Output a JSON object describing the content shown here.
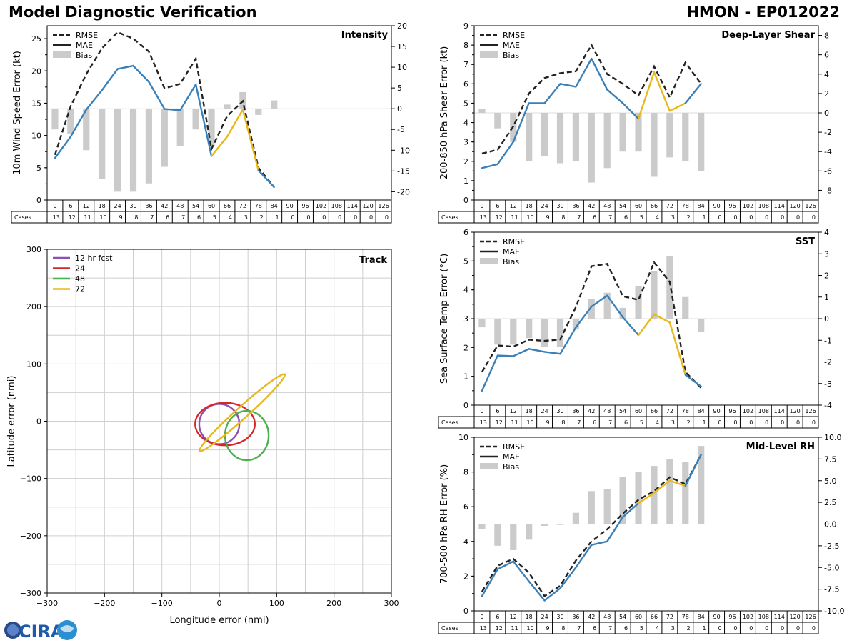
{
  "header": {
    "title": "Model Diagnostic Verification",
    "storm": "HMON - EP012022"
  },
  "logo": {
    "text": "CIRA"
  },
  "common": {
    "hours": [
      0,
      6,
      12,
      18,
      24,
      30,
      36,
      42,
      48,
      54,
      60,
      66,
      72,
      78,
      84,
      90,
      96,
      102,
      108,
      114,
      120,
      126
    ],
    "cases": [
      13,
      12,
      11,
      10,
      9,
      8,
      7,
      6,
      7,
      6,
      5,
      4,
      3,
      2,
      1,
      0,
      0,
      0,
      0,
      0,
      0,
      0
    ],
    "cases_label": "Cases",
    "legend": [
      "RMSE",
      "MAE",
      "Bias"
    ],
    "colors": {
      "rmse": "#222222",
      "mae": "#3a80b8",
      "mae_low_n": "#e8b81a",
      "bias": "#cbcbcb",
      "track_grid": "#cfcfcf"
    }
  },
  "chart_data": [
    {
      "id": "intensity",
      "type": "line",
      "title": "Intensity",
      "ylabel": "10m Wind Speed Error (kt)",
      "ylim": [
        0,
        27
      ],
      "yticks": [
        0,
        5,
        10,
        15,
        20,
        25
      ],
      "y2lim": [
        -22,
        20
      ],
      "y2ticks": [
        -20,
        -15,
        -10,
        -5,
        0,
        5,
        10,
        15,
        20
      ],
      "rmse": [
        7.0,
        14.5,
        19.5,
        23.5,
        26.0,
        25.0,
        23.0,
        17.3,
        18.0,
        21.9,
        7.9,
        13.0,
        15.3,
        5.0,
        2.0
      ],
      "mae": [
        6.5,
        9.8,
        14.0,
        17.0,
        20.3,
        20.8,
        18.3,
        14.1,
        13.9,
        17.9,
        6.8,
        9.8,
        14.0,
        4.6,
        2.0
      ],
      "bias": [
        -5.0,
        -6.0,
        -10.0,
        -17.0,
        -20.0,
        -20.0,
        -18.0,
        -14.0,
        -9.0,
        -5.0,
        -9.0,
        1.0,
        4.0,
        -1.5,
        2.0
      ]
    },
    {
      "id": "shear",
      "type": "line",
      "title": "Deep-Layer Shear",
      "ylabel": "200-850 hPa Shear Error (kt)",
      "ylim": [
        0,
        9
      ],
      "yticks": [
        0,
        1,
        2,
        3,
        4,
        5,
        6,
        7,
        8,
        9
      ],
      "y2lim": [
        -9,
        9
      ],
      "y2ticks": [
        -8,
        -6,
        -4,
        -2,
        0,
        2,
        4,
        6,
        8
      ],
      "rmse": [
        2.4,
        2.6,
        3.8,
        5.5,
        6.3,
        6.55,
        6.65,
        8.0,
        6.5,
        6.0,
        5.4,
        6.9,
        5.3,
        7.1,
        6.0
      ],
      "mae": [
        1.65,
        1.85,
        3.0,
        5.0,
        5.0,
        6.0,
        5.85,
        7.3,
        5.7,
        5.0,
        4.2,
        6.6,
        4.6,
        5.0,
        6.0
      ],
      "bias": [
        0.4,
        -1.6,
        -3.0,
        -5.0,
        -4.5,
        -5.2,
        -5.0,
        -7.2,
        -5.7,
        -4.0,
        -4.0,
        -6.6,
        -4.6,
        -5.0,
        -6.0
      ]
    },
    {
      "id": "sst",
      "type": "line",
      "title": "SST",
      "ylabel": "Sea Surface Temp Error (°C)",
      "ylim": [
        0,
        6
      ],
      "yticks": [
        0,
        1,
        2,
        3,
        4,
        5,
        6
      ],
      "y2lim": [
        -4,
        4
      ],
      "y2ticks": [
        -4,
        -3,
        -2,
        -1,
        0,
        1,
        2,
        3,
        4
      ],
      "rmse": [
        1.15,
        2.07,
        2.03,
        2.27,
        2.23,
        2.28,
        3.4,
        4.82,
        4.9,
        3.78,
        3.65,
        4.95,
        4.27,
        1.15,
        0.6
      ],
      "mae": [
        0.5,
        1.72,
        1.7,
        1.95,
        1.85,
        1.78,
        2.7,
        3.42,
        3.8,
        3.05,
        2.43,
        3.15,
        2.87,
        1.05,
        0.65
      ],
      "bias": [
        -0.4,
        -1.2,
        -1.2,
        -0.9,
        -1.3,
        -1.3,
        -0.5,
        0.9,
        1.2,
        0.5,
        1.5,
        2.2,
        2.9,
        1.0,
        -0.6
      ]
    },
    {
      "id": "rh",
      "type": "line",
      "title": "Mid-Level RH",
      "ylabel": "700-500 hPa RH Error (%)",
      "ylim": [
        0,
        10
      ],
      "yticks": [
        0,
        2,
        4,
        6,
        8,
        10
      ],
      "y2lim": [
        -10,
        10
      ],
      "y2ticks": [
        "-10.0",
        "-7.5",
        "-5.0",
        "-2.5",
        "0.0",
        "2.5",
        "5.0",
        "7.5",
        "10.0"
      ],
      "rmse": [
        1.1,
        2.6,
        3.0,
        2.2,
        0.85,
        1.45,
        2.9,
        4.0,
        4.7,
        5.6,
        6.4,
        6.9,
        7.7,
        7.3,
        9.0
      ],
      "mae": [
        0.85,
        2.4,
        2.85,
        1.7,
        0.6,
        1.3,
        2.5,
        3.8,
        4.0,
        5.4,
        6.2,
        6.8,
        7.5,
        7.2,
        9.0
      ],
      "bias": [
        -0.6,
        -2.5,
        -3.0,
        -1.8,
        -0.2,
        -0.1,
        1.3,
        3.8,
        4.0,
        5.4,
        6.0,
        6.7,
        7.5,
        7.2,
        9.0
      ]
    },
    {
      "id": "track",
      "type": "ellipse",
      "title": "Track",
      "xlabel": "Longitude error (nmi)",
      "ylabel": "Latitude error (nmi)",
      "xlim": [
        -300,
        300
      ],
      "ylim": [
        -300,
        300
      ],
      "ticks": [
        -300,
        -200,
        -100,
        0,
        100,
        200,
        300
      ],
      "grid_step": 50,
      "legend": [
        "12 hr fcst",
        "24",
        "48",
        "72"
      ],
      "ellipses": [
        {
          "label": "12 hr fcst",
          "color": "#8e4fb0",
          "cx": 0,
          "cy": -5,
          "rx": 35,
          "ry": 35,
          "angle": 90
        },
        {
          "label": "24",
          "color": "#d62728",
          "cx": 10,
          "cy": -5,
          "rx": 52,
          "ry": 37,
          "angle": 0
        },
        {
          "label": "48",
          "color": "#4caf50",
          "cx": 48,
          "cy": -25,
          "rx": 38,
          "ry": 43,
          "angle": 0
        },
        {
          "label": "72",
          "color": "#e8b81a",
          "cx": 40,
          "cy": 15,
          "rx": 100,
          "ry": 10,
          "angle": 42
        }
      ]
    }
  ]
}
